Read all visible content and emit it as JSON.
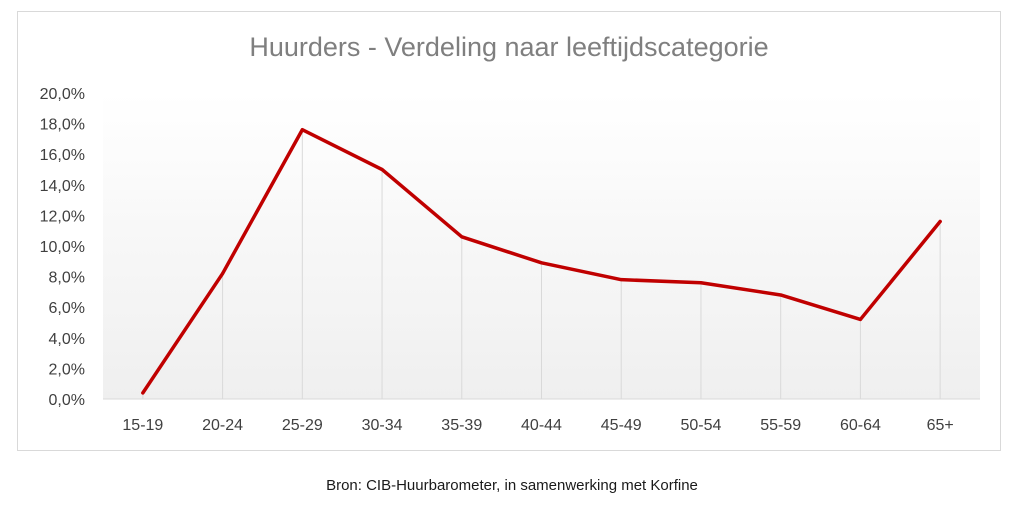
{
  "chart_data": {
    "type": "line",
    "title": "Huurders - Verdeling naar leeftijdscategorie",
    "xlabel": "",
    "ylabel": "",
    "categories": [
      "15-19",
      "20-24",
      "25-29",
      "30-34",
      "35-39",
      "40-44",
      "45-49",
      "50-54",
      "55-59",
      "60-64",
      "65+"
    ],
    "series": [
      {
        "values": [
          0.4,
          8.2,
          17.6,
          15.0,
          10.6,
          8.9,
          7.8,
          7.6,
          6.8,
          5.2,
          11.6
        ]
      }
    ],
    "ylim": [
      0,
      20
    ],
    "yticks": [
      "0,0%",
      "2,0%",
      "4,0%",
      "6,0%",
      "8,0%",
      "10,0%",
      "12,0%",
      "14,0%",
      "16,0%",
      "18,0%",
      "20,0%"
    ],
    "grid": "vertical drop lines per category",
    "legend": "none",
    "line_color": "#c00000"
  },
  "footer": {
    "source": "Bron: CIB-Huurbarometer, in samenwerking met Korfine"
  }
}
